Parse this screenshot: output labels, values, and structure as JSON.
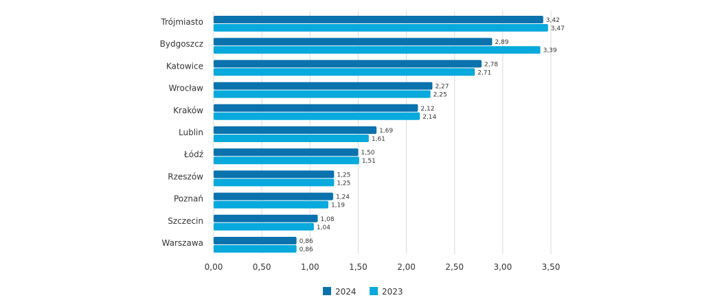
{
  "chart_data": {
    "type": "bar",
    "orientation": "horizontal",
    "categories": [
      "Trójmiasto",
      "Bydgoszcz",
      "Katowice",
      "Wrocław",
      "Kraków",
      "Lublin",
      "Łódź",
      "Rzeszów",
      "Poznań",
      "Szczecin",
      "Warszawa"
    ],
    "series": [
      {
        "name": "2024",
        "color": "#0a72ad",
        "values": [
          3.42,
          2.89,
          2.78,
          2.27,
          2.12,
          1.69,
          1.5,
          1.25,
          1.24,
          1.08,
          0.86
        ],
        "labels": [
          "3,42",
          "2,89",
          "2,78",
          "2,27",
          "2,12",
          "1,69",
          "1,50",
          "1,25",
          "1,24",
          "1,08",
          "0,86"
        ]
      },
      {
        "name": "2023",
        "color": "#08a9dc",
        "values": [
          3.47,
          3.39,
          2.71,
          2.25,
          2.14,
          1.61,
          1.51,
          1.25,
          1.19,
          1.04,
          0.86
        ],
        "labels": [
          "3,47",
          "3,39",
          "2,71",
          "2,25",
          "2,14",
          "1,61",
          "1,51",
          "1,25",
          "1,19",
          "1,04",
          "0,86"
        ]
      }
    ],
    "xlim": [
      0,
      3.5
    ],
    "xticks": [
      0,
      0.5,
      1,
      1.5,
      2,
      2.5,
      3,
      3.5
    ],
    "xtick_labels": [
      "0,00",
      "0,50",
      "1,00",
      "1,50",
      "2,00",
      "2,50",
      "3,00",
      "3,50"
    ],
    "grid": true,
    "legend_position": "bottom-center",
    "title": "",
    "xlabel": "",
    "ylabel": ""
  }
}
